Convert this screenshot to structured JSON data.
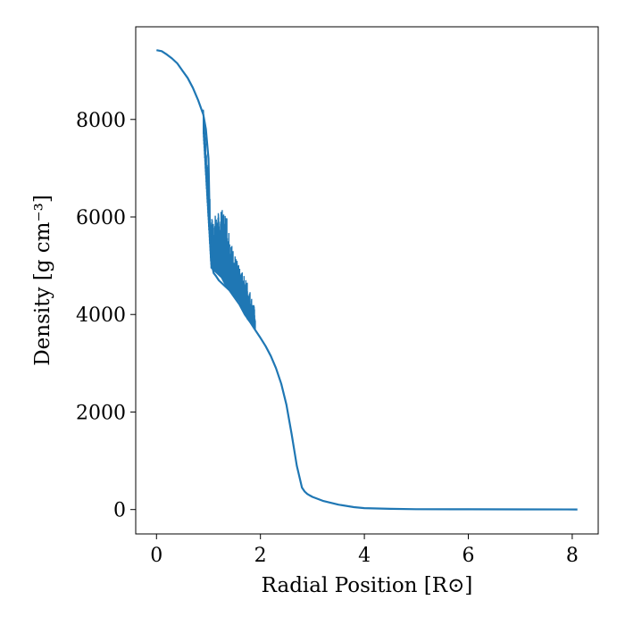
{
  "chart_data": {
    "type": "line",
    "title": "",
    "xlabel": "Radial Position [R⊙]",
    "ylabel": "Density [g cm⁻³]",
    "xlim": [
      -0.4,
      8.5
    ],
    "ylim": [
      -500,
      9900
    ],
    "xticks": [
      0,
      2,
      4,
      6,
      8
    ],
    "yticks": [
      0,
      2000,
      4000,
      6000,
      8000
    ],
    "xtick_labels": [
      "0",
      "2",
      "4",
      "6",
      "8"
    ],
    "ytick_labels": [
      "0",
      "2000",
      "4000",
      "6000",
      "8000"
    ],
    "grid": false,
    "legend": false,
    "series": [
      {
        "color": "#1f77b4",
        "x": [
          0.0,
          0.1,
          0.2,
          0.3,
          0.4,
          0.5,
          0.6,
          0.7,
          0.8,
          0.9,
          0.95,
          1.0,
          1.03,
          1.05,
          1.08,
          1.1,
          1.15,
          1.2,
          1.3,
          1.4,
          1.5,
          1.6,
          1.7,
          1.8,
          1.9,
          2.0,
          2.1,
          2.2,
          2.3,
          2.4,
          2.5,
          2.6,
          2.7,
          2.8,
          2.85,
          2.9,
          2.95,
          3.0,
          3.2,
          3.5,
          3.8,
          4.0,
          4.5,
          5.0,
          6.0,
          7.0,
          8.1
        ],
        "y": [
          9420,
          9400,
          9330,
          9250,
          9150,
          9000,
          8850,
          8650,
          8400,
          8100,
          7800,
          7200,
          5600,
          5150,
          4950,
          4850,
          4780,
          4700,
          4600,
          4500,
          4350,
          4200,
          4000,
          3850,
          3680,
          3520,
          3350,
          3150,
          2900,
          2580,
          2150,
          1550,
          900,
          450,
          370,
          320,
          290,
          260,
          180,
          100,
          50,
          30,
          15,
          8,
          5,
          3,
          2
        ],
        "noise_band": [
          {
            "x": 0.9,
            "ymin": 7700,
            "ymax": 8450
          },
          {
            "x": 1.05,
            "ymin": 4950,
            "ymax": 6000
          },
          {
            "x": 1.25,
            "ymin": 4750,
            "ymax": 6150
          },
          {
            "x": 1.35,
            "ymin": 4550,
            "ymax": 6150
          },
          {
            "x": 1.45,
            "ymin": 4450,
            "ymax": 5450
          },
          {
            "x": 1.6,
            "ymin": 4250,
            "ymax": 4950
          },
          {
            "x": 1.75,
            "ymin": 3900,
            "ymax": 4700
          },
          {
            "x": 1.9,
            "ymin": 3700,
            "ymax": 4100
          }
        ]
      }
    ]
  }
}
